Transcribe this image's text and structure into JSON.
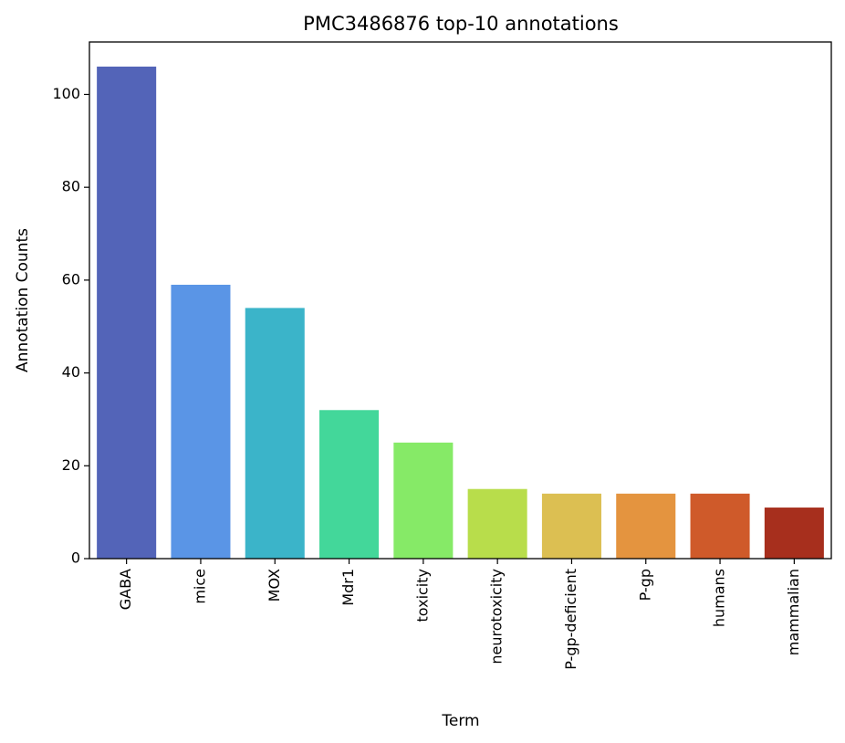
{
  "chart_data": {
    "type": "bar",
    "title": "PMC3486876 top-10 annotations",
    "xlabel": "Term",
    "ylabel": "Annotation Counts",
    "categories": [
      "GABA",
      "mice",
      "MOX",
      "Mdr1",
      "toxicity",
      "neurotoxicity",
      "P-gp-deficient",
      "P-gp",
      "humans",
      "mammalian"
    ],
    "values": [
      106,
      59,
      54,
      32,
      25,
      15,
      14,
      14,
      14,
      11
    ],
    "colors": [
      "#5364b8",
      "#5a95e6",
      "#3bb4c9",
      "#43d79a",
      "#86ea67",
      "#b8dd4b",
      "#dcbf52",
      "#e4943f",
      "#cf5a2a",
      "#a72f1d"
    ],
    "ylim": [
      0,
      111.3
    ],
    "yticks": [
      0,
      20,
      40,
      60,
      80,
      100
    ],
    "grid": false,
    "legend": "none"
  }
}
